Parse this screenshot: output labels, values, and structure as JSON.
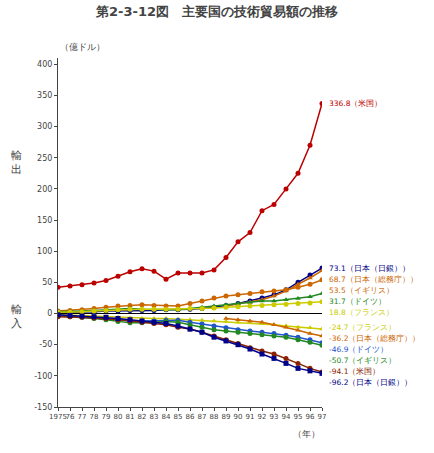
{
  "chart_data": {
    "type": "line",
    "title": "第2-3-12図　主要国の技術貿易額の推移",
    "unit_label": "（億ドル）",
    "xlabel": "（年）",
    "side_labels": [
      "輸出",
      "輸入"
    ],
    "x": [
      1975,
      1976,
      1977,
      1978,
      1979,
      1980,
      1981,
      1982,
      1983,
      1984,
      1985,
      1986,
      1987,
      1988,
      1989,
      1990,
      1991,
      1992,
      1993,
      1994,
      1995,
      1996,
      1997
    ],
    "series": [
      {
        "color": "#bb0000",
        "marker": "circle",
        "values": [
          42,
          44,
          46,
          49,
          53,
          60,
          67,
          72,
          68,
          55,
          65,
          65,
          65,
          70,
          90,
          115,
          130,
          165,
          175,
          200,
          225,
          270,
          337
        ]
      },
      {
        "color": "#000088",
        "marker": "circle",
        "values": [
          2,
          2,
          3,
          3,
          4,
          4,
          5,
          5,
          5,
          6,
          6,
          7,
          8,
          10,
          13,
          16,
          20,
          25,
          30,
          38,
          50,
          62,
          73
        ]
      },
      {
        "color": "#cc6600",
        "marker": "triangle",
        "values": [
          null,
          null,
          null,
          null,
          null,
          null,
          null,
          null,
          null,
          null,
          null,
          null,
          null,
          null,
          12,
          15,
          18,
          22,
          28,
          36,
          47,
          57,
          69
        ]
      },
      {
        "color": "#cc6600",
        "marker": "circle",
        "values": [
          4,
          5,
          6,
          8,
          10,
          12,
          13,
          14,
          13,
          12,
          12,
          16,
          20,
          25,
          28,
          30,
          32,
          35,
          36,
          38,
          42,
          47,
          54
        ]
      },
      {
        "color": "#228822",
        "marker": "triangle",
        "values": [
          3,
          3,
          4,
          5,
          6,
          7,
          8,
          7,
          7,
          6,
          6,
          8,
          10,
          12,
          14,
          16,
          18,
          20,
          20,
          22,
          24,
          27,
          32
        ]
      },
      {
        "color": "#cccc00",
        "marker": "circle",
        "values": [
          2,
          2,
          3,
          4,
          5,
          6,
          7,
          7,
          7,
          7,
          7,
          8,
          8,
          9,
          10,
          11,
          12,
          13,
          14,
          15,
          16,
          17,
          19
        ]
      },
      {
        "color": "#cccc00",
        "marker": "triangle",
        "values": [
          -2,
          -2,
          -3,
          -4,
          -5,
          -6,
          -7,
          -8,
          -8,
          -8,
          -9,
          -10,
          -11,
          -12,
          -13,
          -14,
          -15,
          -16,
          -18,
          -20,
          -22,
          -23,
          -25
        ]
      },
      {
        "color": "#cc6600",
        "marker": "triangle",
        "values": [
          null,
          null,
          null,
          null,
          null,
          null,
          null,
          null,
          null,
          null,
          null,
          null,
          null,
          null,
          -8,
          -10,
          -12,
          -14,
          -18,
          -22,
          -27,
          -32,
          -36
        ]
      },
      {
        "color": "#2255cc",
        "marker": "circle",
        "values": [
          -3,
          -4,
          -5,
          -6,
          -8,
          -10,
          -12,
          -12,
          -12,
          -11,
          -11,
          -14,
          -17,
          -20,
          -23,
          -26,
          -28,
          -30,
          -32,
          -35,
          -38,
          -42,
          -47
        ]
      },
      {
        "color": "#228822",
        "marker": "circle",
        "values": [
          -4,
          -5,
          -6,
          -8,
          -10,
          -13,
          -15,
          -15,
          -14,
          -13,
          -14,
          -18,
          -22,
          -26,
          -28,
          -30,
          -32,
          -34,
          -36,
          -38,
          -42,
          -46,
          -51
        ]
      },
      {
        "color": "#882200",
        "marker": "circle",
        "values": [
          -5,
          -5,
          -6,
          -7,
          -8,
          -10,
          -12,
          -14,
          -16,
          -18,
          -22,
          -25,
          -30,
          -36,
          -42,
          -48,
          -55,
          -60,
          -65,
          -72,
          -80,
          -88,
          -94
        ]
      },
      {
        "color": "#000088",
        "marker": "square",
        "values": [
          -2,
          -3,
          -4,
          -5,
          -6,
          -8,
          -10,
          -12,
          -14,
          -16,
          -20,
          -25,
          -30,
          -38,
          -44,
          -50,
          -57,
          -65,
          -72,
          -80,
          -88,
          -92,
          -96
        ]
      }
    ],
    "annotations": [
      {
        "text": "336.8（米国）",
        "y": 337,
        "color": "#bb0000"
      },
      {
        "text": "73.1（日本（日銀））",
        "y": 73,
        "color": "#000088"
      },
      {
        "text": "68.7（日本（総務庁））",
        "y": 65,
        "color": "#cc6600"
      },
      {
        "text": "53.5（イギリス）",
        "y": 56,
        "color": "#cc6600"
      },
      {
        "text": "31.7（ドイツ）",
        "y": 35,
        "color": "#228822"
      },
      {
        "text": "18.8（フランス）",
        "y": 23,
        "color": "#cccc00"
      },
      {
        "text": "-24.7（フランス）",
        "y": -22,
        "color": "#cccc00"
      },
      {
        "text": "-36.2（日本（総務庁））",
        "y": -30,
        "color": "#cc6600"
      },
      {
        "text": "-46.9（ドイツ）",
        "y": -40,
        "color": "#2255cc"
      },
      {
        "text": "-50.7（イギリス）",
        "y": -50,
        "color": "#228822"
      },
      {
        "text": "-94.1（米国）",
        "y": -88,
        "color": "#882200"
      },
      {
        "text": "-96.2（日本（日銀））",
        "y": -100,
        "color": "#000088"
      }
    ],
    "xlim": [
      1975,
      1997
    ],
    "xticks": [
      1975,
      {
        "value": 1976,
        "label": "76"
      },
      {
        "value": 1977,
        "label": "77"
      },
      {
        "value": 1978,
        "label": "78"
      },
      {
        "value": 1979,
        "label": "79"
      },
      {
        "value": 1980,
        "label": "80"
      },
      {
        "value": 1981,
        "label": "81"
      },
      {
        "value": 1982,
        "label": "82"
      },
      {
        "value": 1983,
        "label": "83"
      },
      {
        "value": 1984,
        "label": "84"
      },
      {
        "value": 1985,
        "label": "85"
      },
      {
        "value": 1986,
        "label": "86"
      },
      {
        "value": 1987,
        "label": "87"
      },
      {
        "value": 1988,
        "label": "88"
      },
      {
        "value": 1989,
        "label": "89"
      },
      {
        "value": 1990,
        "label": "90"
      },
      {
        "value": 1991,
        "label": "91"
      },
      {
        "value": 1992,
        "label": "92"
      },
      {
        "value": 1993,
        "label": "93"
      },
      {
        "value": 1994,
        "label": "94"
      },
      {
        "value": 1995,
        "label": "95"
      },
      {
        "value": 1996,
        "label": "96"
      },
      {
        "value": 1997,
        "label": "97"
      }
    ],
    "ylim": [
      -150,
      410
    ],
    "yticks": [
      -150,
      -100,
      -50,
      0,
      50,
      100,
      150,
      200,
      250,
      300,
      350,
      400
    ],
    "grid": false
  }
}
